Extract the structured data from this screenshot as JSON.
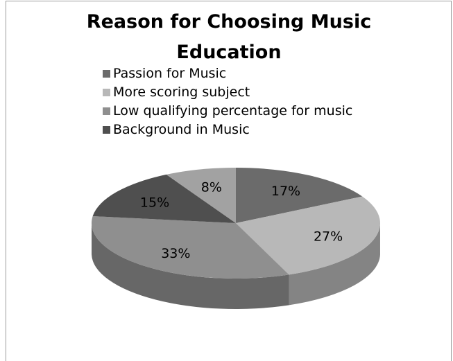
{
  "chart_data": {
    "type": "pie",
    "title": "Reason for Choosing Music Education",
    "legend_position": "top",
    "three_d": true,
    "categories": [
      "Passion for Music",
      "More scoring subject",
      "Low qualifying percentage for music",
      "Background in Music"
    ],
    "values": [
      17,
      27,
      33,
      15
    ],
    "data_labels": [
      "17%",
      "27%",
      "33%",
      "15%"
    ],
    "colors": [
      "#6b6b6b",
      "#b8b8b8",
      "#8f8f8f",
      "#4f4f4f"
    ],
    "unlabeled_slice": {
      "value": 8,
      "label": "8%",
      "color": "#a2a2a2"
    }
  }
}
